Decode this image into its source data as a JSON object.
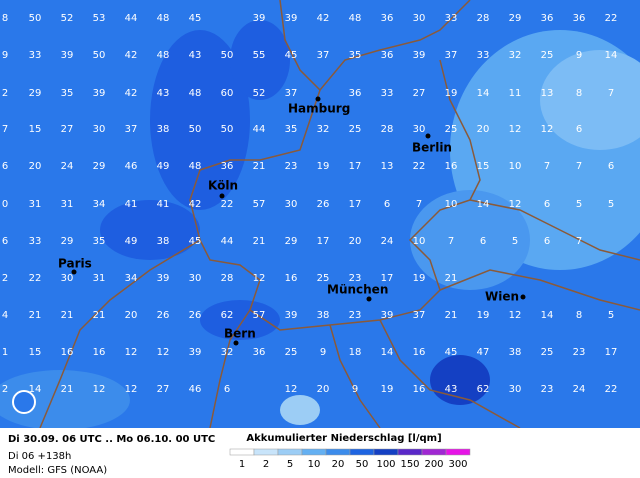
{
  "grid": {
    "rows": [
      [
        8,
        50,
        52,
        53,
        44,
        48,
        45,
        null,
        39,
        39,
        42,
        48,
        36,
        30,
        33,
        28,
        29,
        36,
        36,
        22
      ],
      [
        9,
        33,
        39,
        50,
        42,
        48,
        43,
        50,
        55,
        45,
        37,
        35,
        36,
        39,
        37,
        33,
        32,
        25,
        9,
        14
      ],
      [
        2,
        29,
        35,
        39,
        42,
        43,
        48,
        60,
        52,
        37,
        null,
        36,
        33,
        27,
        19,
        14,
        11,
        13,
        8,
        7
      ],
      [
        7,
        15,
        27,
        30,
        37,
        38,
        50,
        50,
        44,
        35,
        32,
        25,
        28,
        30,
        25,
        20,
        12,
        12,
        6,
        null
      ],
      [
        6,
        20,
        24,
        29,
        46,
        49,
        48,
        36,
        21,
        23,
        19,
        17,
        13,
        22,
        16,
        15,
        10,
        7,
        7,
        6
      ],
      [
        0,
        31,
        31,
        34,
        41,
        41,
        42,
        22,
        57,
        30,
        26,
        17,
        6,
        7,
        10,
        14,
        12,
        6,
        5,
        5
      ],
      [
        6,
        33,
        29,
        35,
        49,
        38,
        45,
        44,
        21,
        29,
        17,
        20,
        24,
        10,
        7,
        6,
        5,
        6,
        7,
        null
      ],
      [
        2,
        22,
        30,
        31,
        34,
        39,
        30,
        28,
        12,
        16,
        25,
        23,
        17,
        19,
        21,
        null,
        null,
        null,
        null,
        null
      ],
      [
        4,
        21,
        21,
        21,
        20,
        26,
        26,
        62,
        57,
        39,
        38,
        23,
        39,
        37,
        21,
        19,
        12,
        14,
        8,
        5
      ],
      [
        1,
        15,
        16,
        16,
        12,
        12,
        39,
        32,
        36,
        25,
        9,
        18,
        14,
        16,
        45,
        47,
        38,
        25,
        23,
        17
      ],
      [
        2,
        14,
        21,
        12,
        12,
        27,
        46,
        6,
        null,
        12,
        20,
        9,
        19,
        16,
        43,
        62,
        30,
        23,
        24,
        22
      ]
    ]
  },
  "cities": [
    "Hamburg",
    "Berlin",
    "Köln",
    "Paris",
    "München",
    "Wien",
    "Bern"
  ],
  "footer": {
    "period": "Di 30.09. 06 UTC .. Mo 06.10. 00 UTC",
    "step": "Di 06 +138h",
    "model": "Modell: GFS (NOAA)",
    "legend_title": "Akkumulierter Niederschlag [l/qm]",
    "legend": [
      {
        "label": 1,
        "color": "#ffffff"
      },
      {
        "label": 2,
        "color": "#c8e4fa"
      },
      {
        "label": 5,
        "color": "#9ccdf5"
      },
      {
        "label": 10,
        "color": "#64b0f2"
      },
      {
        "label": 20,
        "color": "#3c8ceb"
      },
      {
        "label": 50,
        "color": "#1e64e1"
      },
      {
        "label": 100,
        "color": "#1440c3"
      },
      {
        "label": 150,
        "color": "#5a28c8"
      },
      {
        "label": 200,
        "color": "#a028d2"
      },
      {
        "label": 300,
        "color": "#e614e6"
      }
    ]
  }
}
